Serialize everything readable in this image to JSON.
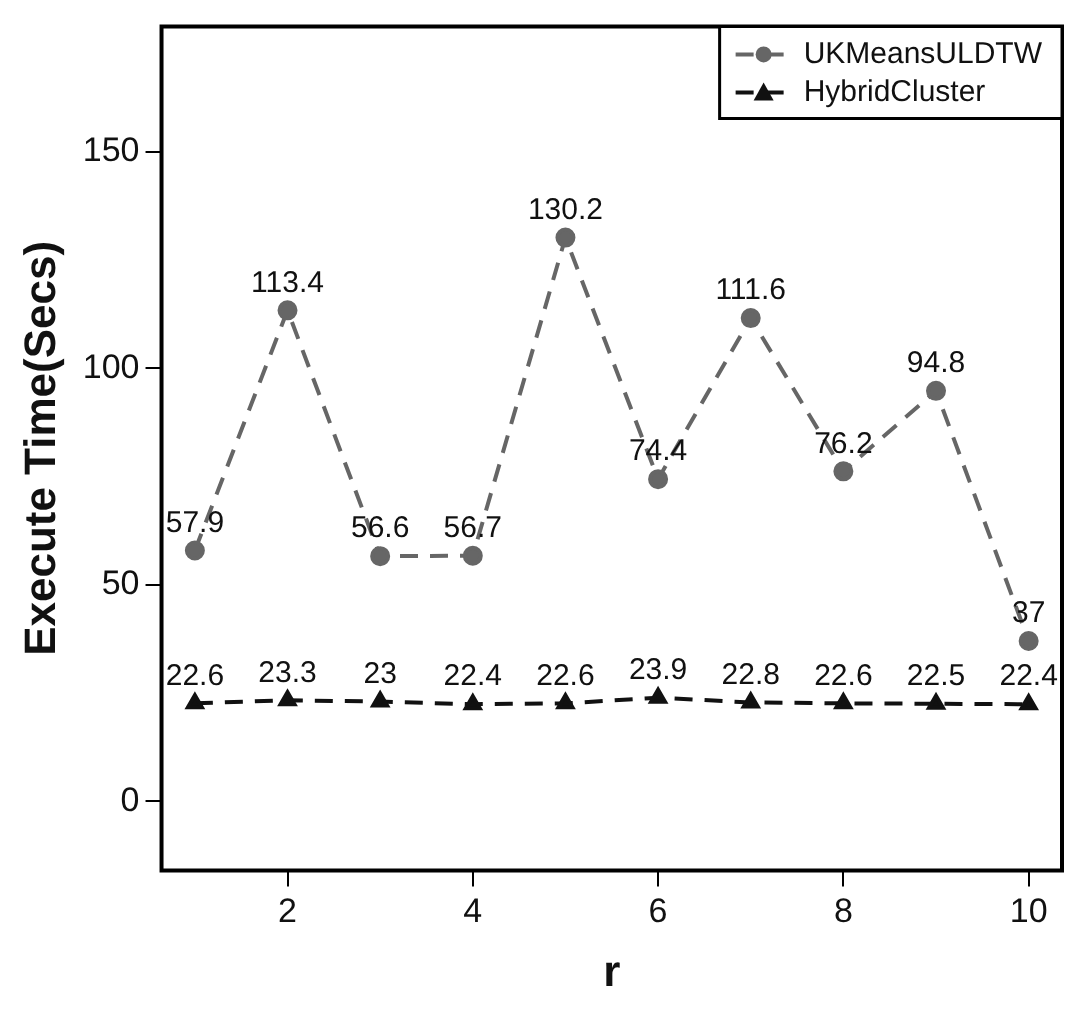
{
  "chart_data": {
    "type": "line",
    "xlabel": "r",
    "ylabel": "Execute Time(Secs)",
    "x": [
      1,
      2,
      3,
      4,
      5,
      6,
      7,
      8,
      9,
      10
    ],
    "series": [
      {
        "name": "UKMeansULDTW",
        "color": "#666666",
        "marker": "circle",
        "values": [
          57.9,
          113.4,
          56.6,
          56.7,
          130.2,
          74.4,
          111.6,
          76.2,
          94.8,
          37
        ]
      },
      {
        "name": "HybridCluster",
        "color": "#111111",
        "marker": "triangle",
        "values": [
          22.6,
          23.3,
          23,
          22.4,
          22.6,
          23.9,
          22.8,
          22.6,
          22.5,
          22.4
        ]
      }
    ],
    "xlim": [
      0.64,
      10.36
    ],
    "xticks": [
      2,
      4,
      6,
      8,
      10
    ],
    "ylim": [
      -16,
      179
    ],
    "yticks": [
      0,
      50,
      100,
      150
    ],
    "line_style": "dashed",
    "grid": false,
    "legend": "top right",
    "data_labels": true
  }
}
